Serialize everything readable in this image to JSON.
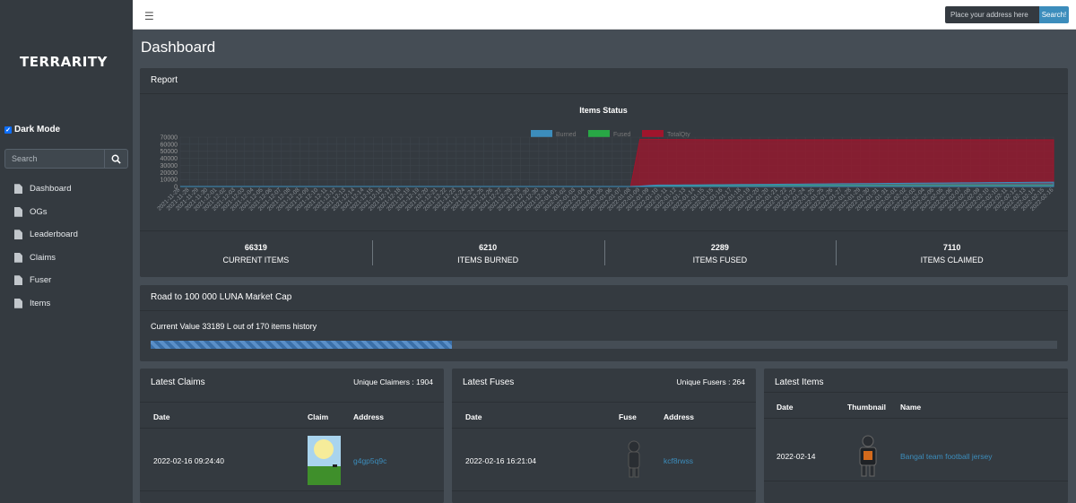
{
  "sidebar": {
    "logo": "TERRARITY",
    "dark_mode_label": "Dark Mode",
    "search_placeholder": "Search",
    "items": [
      {
        "label": "Dashboard"
      },
      {
        "label": "OGs"
      },
      {
        "label": "Leaderboard"
      },
      {
        "label": "Claims"
      },
      {
        "label": "Fuser"
      },
      {
        "label": "Items"
      }
    ]
  },
  "topbar": {
    "address_placeholder": "Place your address here",
    "search_button": "Search!"
  },
  "page_title": "Dashboard",
  "report": {
    "header": "Report",
    "stats": [
      {
        "value": "66319",
        "label": "CURRENT ITEMS"
      },
      {
        "value": "6210",
        "label": "ITEMS BURNED"
      },
      {
        "value": "2289",
        "label": "ITEMS FUSED"
      },
      {
        "value": "7110",
        "label": "ITEMS CLAIMED"
      }
    ]
  },
  "chart_data": {
    "type": "area",
    "title": "Items Status",
    "legend_position": "top",
    "series": [
      {
        "name": "Burned",
        "color": "#3c8dbc",
        "values": [
          0,
          0,
          0,
          0,
          0,
          0,
          0,
          0,
          0,
          0,
          0,
          0,
          0,
          0,
          0,
          0,
          0,
          0,
          0,
          0,
          0,
          0,
          0,
          0,
          0,
          0,
          0,
          0,
          0,
          0,
          0,
          0,
          0,
          0,
          0,
          0,
          0,
          0,
          0,
          0,
          0,
          0,
          0,
          0,
          0,
          0,
          0,
          0,
          0,
          0,
          500,
          1500,
          2000,
          2000,
          2100,
          2200,
          2300,
          2400,
          2500,
          2600,
          2700,
          2800,
          2900,
          3000,
          3100,
          3200,
          3300,
          3400,
          3500,
          3600,
          3700,
          3800,
          3900,
          4000,
          4100,
          4200,
          4300,
          4400,
          4500,
          4600,
          4700,
          4800,
          4900,
          5000,
          5100,
          5200,
          5300,
          5400,
          5500,
          5600,
          5700,
          5800,
          5900,
          6000,
          6100,
          6210
        ]
      },
      {
        "name": "Fused",
        "color": "#28a745",
        "values": [
          0,
          0,
          0,
          0,
          0,
          0,
          0,
          0,
          0,
          0,
          0,
          0,
          0,
          0,
          0,
          0,
          0,
          0,
          0,
          0,
          0,
          0,
          0,
          0,
          0,
          0,
          0,
          0,
          0,
          0,
          0,
          0,
          0,
          0,
          0,
          0,
          0,
          0,
          0,
          0,
          0,
          0,
          0,
          0,
          0,
          0,
          0,
          0,
          0,
          0,
          300,
          800,
          1000,
          1100,
          1200,
          1250,
          1300,
          1350,
          1400,
          1450,
          1500,
          1550,
          1600,
          1650,
          1700,
          1750,
          1800,
          1850,
          1900,
          1950,
          2000,
          2020,
          2040,
          2060,
          2080,
          2100,
          2120,
          2140,
          2160,
          2180,
          2200,
          2210,
          2220,
          2230,
          2240,
          2250,
          2260,
          2270,
          2275,
          2280,
          2282,
          2284,
          2286,
          2287,
          2288,
          2289
        ]
      },
      {
        "name": "TotalQty",
        "color": "#a0152c",
        "values": [
          0,
          0,
          0,
          0,
          0,
          0,
          0,
          0,
          0,
          0,
          0,
          0,
          0,
          0,
          0,
          0,
          0,
          0,
          0,
          0,
          0,
          0,
          0,
          0,
          0,
          0,
          0,
          0,
          0,
          0,
          0,
          0,
          0,
          0,
          0,
          0,
          0,
          0,
          0,
          0,
          0,
          0,
          0,
          0,
          0,
          0,
          0,
          0,
          0,
          0,
          67000,
          66900,
          66800,
          66700,
          66600,
          66600,
          66500,
          66500,
          66400,
          66400,
          66400,
          66300,
          66300,
          66300,
          66300,
          66300,
          66300,
          66300,
          66300,
          66300,
          66300,
          66300,
          66300,
          66300,
          66300,
          66300,
          66300,
          66300,
          66300,
          66300,
          66300,
          66300,
          66300,
          66300,
          66300,
          66300,
          66300,
          66300,
          66300,
          66300,
          66300,
          66300,
          66300,
          66300,
          66319,
          66319
        ]
      }
    ],
    "y_ticks": [
      "70000",
      "60000",
      "50000",
      "40000",
      "30000",
      "20000",
      "10000",
      "0"
    ],
    "ylim": [
      0,
      70000
    ],
    "x_start": "2021-11-28",
    "x_end": "2022-02-16",
    "grid": true
  },
  "road": {
    "header": "Road to 100 000 LUNA Market Cap",
    "current_text": "Current Value 33189 L out of 170 items history",
    "progress": 0.332
  },
  "claims": {
    "header": "Latest Claims",
    "unique": "Unique Claimers : 1904",
    "columns": [
      "Date",
      "Claim",
      "Address"
    ],
    "rows": [
      {
        "date": "2022-02-16 09:24:40",
        "address": "g4gp5q9c"
      }
    ]
  },
  "fuses": {
    "header": "Latest Fuses",
    "unique": "Unique Fusers : 264",
    "columns": [
      "Date",
      "Fuse",
      "Address"
    ],
    "rows": [
      {
        "date": "2022-02-16 16:21:04",
        "address": "kcf8rwss"
      }
    ]
  },
  "items": {
    "header": "Latest Items",
    "columns": [
      "Date",
      "Thumbnail",
      "Name"
    ],
    "rows": [
      {
        "date": "2022-02-14",
        "name": "Bangal team football jersey"
      }
    ]
  }
}
